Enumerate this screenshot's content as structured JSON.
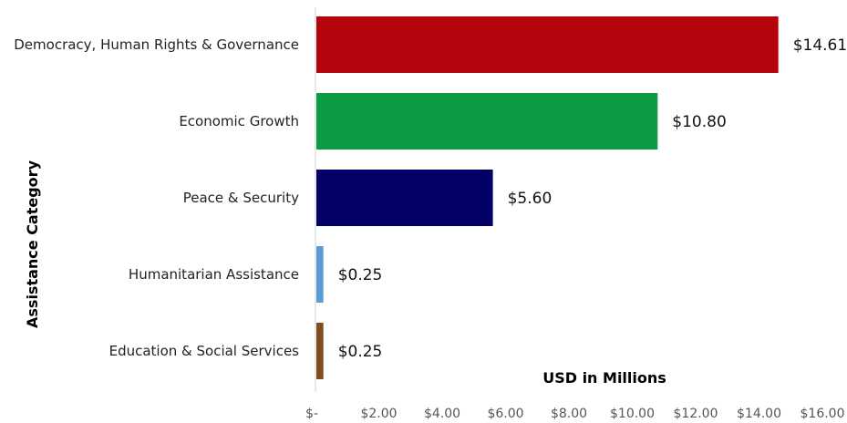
{
  "chart_data": {
    "type": "bar",
    "orientation": "horizontal",
    "categories": [
      "Democracy, Human Rights & Governance",
      "Economic Growth",
      "Peace & Security",
      "Humanitarian Assistance",
      "Education & Social Services"
    ],
    "values": [
      14.61,
      10.8,
      5.6,
      0.25,
      0.25
    ],
    "data_labels": [
      "$14.61",
      "$10.80",
      "$5.60",
      "$0.25",
      "$0.25"
    ],
    "bar_colors": [
      "#b5040b",
      "#0c9b44",
      "#020066",
      "#5b9bd5",
      "#7f4f22"
    ],
    "xlabel": "USD in Millions",
    "ylabel": "Assistance Category",
    "xlim": [
      0,
      16
    ],
    "x_ticks": [
      0,
      2,
      4,
      6,
      8,
      10,
      12,
      14,
      16
    ],
    "x_tick_labels": [
      "$-",
      "$2.00",
      "$4.00",
      "$6.00",
      "$8.00",
      "$10.00",
      "$12.00",
      "$14.00",
      "$16.00"
    ],
    "grid": false,
    "legend": "none"
  }
}
